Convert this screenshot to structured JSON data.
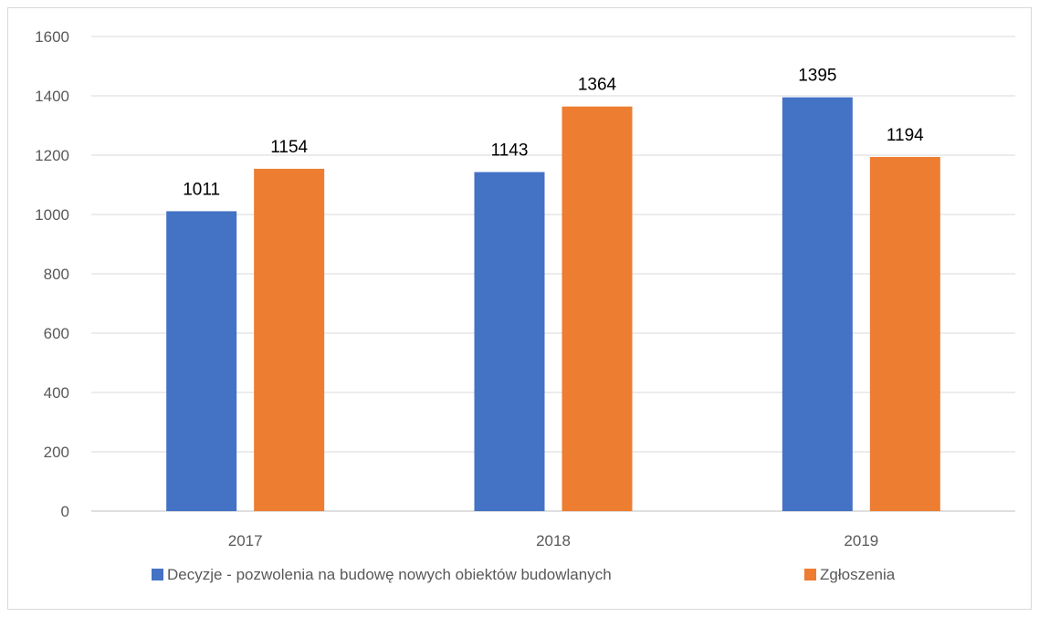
{
  "chart_data": {
    "type": "bar",
    "categories": [
      "2017",
      "2018",
      "2019"
    ],
    "series": [
      {
        "name": "Decyzje - pozwolenia na budowę nowych obiektów budowlanych",
        "values": [
          1011,
          1143,
          1395
        ],
        "color": "#4472C4"
      },
      {
        "name": "Zgłoszenia",
        "values": [
          1154,
          1364,
          1194
        ],
        "color": "#ED7D31"
      }
    ],
    "ylim": [
      0,
      1600
    ],
    "yticks": [
      0,
      200,
      400,
      600,
      800,
      1000,
      1200,
      1400,
      1600
    ],
    "grid": true,
    "legend_position": "bottom",
    "data_labels": true
  }
}
